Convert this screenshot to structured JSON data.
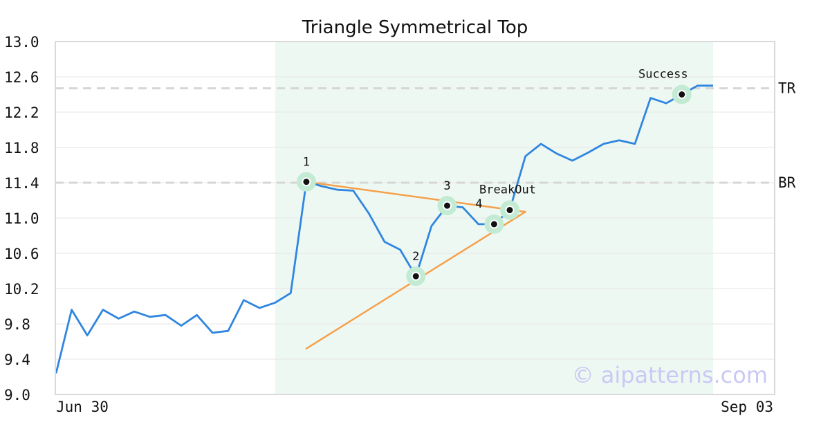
{
  "chart_data": {
    "type": "line",
    "title": "Triangle Symmetrical Top",
    "watermark": "© aipatterns.com",
    "x_tick_labels": [
      "Jun 30",
      "Sep 03"
    ],
    "ylim": [
      9.0,
      13.0
    ],
    "y_ticks": [
      "9.0",
      "9.4",
      "9.8",
      "10.2",
      "10.6",
      "11.0",
      "11.4",
      "11.8",
      "12.2",
      "12.6",
      "13.0"
    ],
    "grid": true,
    "colors": {
      "price": "#2f86e0",
      "trendline": "#f5a04a",
      "highlight": "#eef8f3",
      "marker_halo": "#c3ebd3",
      "reference": "#d6d6d6"
    },
    "price": [
      9.24,
      9.96,
      9.67,
      9.96,
      9.86,
      9.94,
      9.88,
      9.9,
      9.78,
      9.9,
      9.7,
      9.72,
      10.07,
      9.98,
      10.04,
      10.15,
      11.41,
      11.36,
      11.32,
      11.31,
      11.05,
      10.73,
      10.64,
      10.34,
      10.91,
      11.14,
      11.12,
      10.93,
      10.93,
      11.09,
      11.7,
      11.84,
      11.73,
      11.65,
      11.74,
      11.84,
      11.88,
      11.84,
      12.36,
      12.3,
      12.4,
      12.5,
      12.5
    ],
    "highlight_range": [
      14,
      42
    ],
    "reference_lines": [
      {
        "label": "TR",
        "value": 12.47
      },
      {
        "label": "BR",
        "value": 11.4
      }
    ],
    "trendlines": [
      {
        "x": [
          16,
          30
        ],
        "y": [
          11.41,
          11.07
        ]
      },
      {
        "x": [
          16,
          30
        ],
        "y": [
          9.52,
          11.07
        ]
      }
    ],
    "annotations": [
      {
        "label": "1",
        "x": 16,
        "y": 11.41
      },
      {
        "label": "2",
        "x": 23,
        "y": 10.34
      },
      {
        "label": "3",
        "x": 25,
        "y": 11.14
      },
      {
        "label": "4",
        "x": 28,
        "y": 10.93
      },
      {
        "label": "BreakOut",
        "x": 29,
        "y": 11.09
      },
      {
        "label": "Success",
        "x": 40,
        "y": 12.4
      }
    ]
  }
}
